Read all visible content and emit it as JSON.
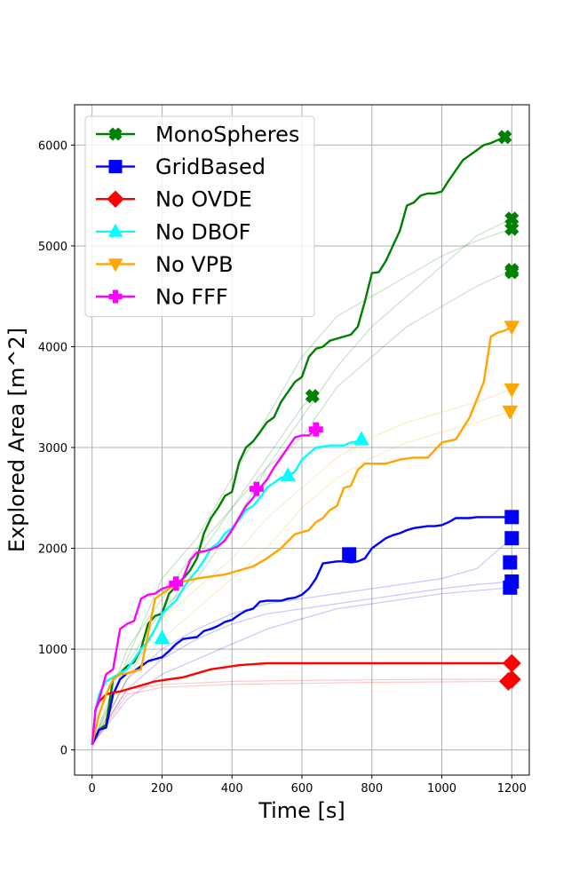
{
  "chart_data": {
    "type": "line",
    "xlabel": "Time [s]",
    "ylabel": "Explored Area [m^2]",
    "xlim": [
      -50,
      1250
    ],
    "ylim": [
      -250,
      6400
    ],
    "xticks": [
      0,
      200,
      400,
      600,
      800,
      1000,
      1200
    ],
    "yticks": [
      0,
      1000,
      2000,
      3000,
      4000,
      5000,
      6000
    ],
    "grid": true,
    "legend_position": "top-left",
    "series": [
      {
        "name": "MonoSpheres",
        "color": "#008000",
        "marker": "x-filled",
        "x": [
          0,
          20,
          40,
          60,
          80,
          100,
          120,
          140,
          160,
          180,
          200,
          220,
          240,
          260,
          280,
          300,
          320,
          340,
          360,
          380,
          400,
          420,
          440,
          460,
          480,
          500,
          520,
          540,
          560,
          580,
          600,
          620,
          640,
          660,
          680,
          700,
          720,
          740,
          760,
          780,
          800,
          820,
          840,
          860,
          880,
          900,
          920,
          940,
          960,
          980,
          1000,
          1020,
          1040,
          1060,
          1080,
          1100,
          1120,
          1140,
          1160,
          1180
        ],
        "values": [
          50,
          200,
          250,
          700,
          760,
          830,
          870,
          1000,
          1250,
          1330,
          1350,
          1550,
          1620,
          1700,
          1780,
          1900,
          2150,
          2300,
          2400,
          2520,
          2560,
          2850,
          3000,
          3060,
          3150,
          3250,
          3300,
          3450,
          3550,
          3650,
          3700,
          3900,
          3980,
          4000,
          4060,
          4080,
          4100,
          4120,
          4200,
          4450,
          4730,
          4740,
          4850,
          5000,
          5150,
          5400,
          5430,
          5500,
          5520,
          5520,
          5540,
          5650,
          5750,
          5850,
          5900,
          5950,
          6000,
          6020,
          6050,
          6080
        ],
        "end_marker": {
          "x": 1180,
          "y": 6080
        },
        "other_run_ends": [
          [
            1200,
            5270
          ],
          [
            1200,
            5170
          ],
          [
            1200,
            4760
          ],
          [
            1200,
            4740
          ],
          [
            630,
            3510
          ]
        ]
      },
      {
        "name": "GridBased",
        "color": "#0000ff",
        "marker": "square",
        "x": [
          0,
          20,
          40,
          60,
          80,
          100,
          120,
          140,
          160,
          180,
          200,
          220,
          240,
          260,
          280,
          300,
          320,
          340,
          360,
          380,
          400,
          420,
          440,
          460,
          480,
          500,
          520,
          540,
          560,
          580,
          600,
          620,
          640,
          660,
          680,
          700,
          720,
          740,
          760,
          780,
          800,
          820,
          840,
          860,
          880,
          900,
          920,
          940,
          960,
          980,
          1000,
          1020,
          1040,
          1060,
          1080,
          1100,
          1120,
          1140,
          1160,
          1180,
          1200
        ],
        "values": [
          50,
          200,
          220,
          550,
          700,
          760,
          780,
          830,
          880,
          900,
          920,
          980,
          1050,
          1100,
          1110,
          1120,
          1180,
          1200,
          1230,
          1270,
          1290,
          1340,
          1380,
          1400,
          1470,
          1480,
          1480,
          1480,
          1500,
          1510,
          1540,
          1600,
          1700,
          1850,
          1860,
          1870,
          1870,
          1860,
          1870,
          1900,
          2000,
          2050,
          2100,
          2130,
          2150,
          2180,
          2200,
          2210,
          2220,
          2220,
          2230,
          2260,
          2300,
          2300,
          2300,
          2310,
          2310,
          2310,
          2310,
          2310,
          2310
        ],
        "end_marker": {
          "x": 1200,
          "y": 2310
        },
        "other_run_ends": [
          [
            1200,
            2100
          ],
          [
            1195,
            1860
          ],
          [
            1200,
            1670
          ],
          [
            1195,
            1610
          ],
          [
            735,
            1940
          ]
        ]
      },
      {
        "name": "No OVDE",
        "color": "#ff0000",
        "marker": "diamond",
        "x": [
          0,
          10,
          20,
          40,
          60,
          80,
          100,
          140,
          180,
          220,
          260,
          300,
          340,
          380,
          420,
          460,
          500,
          600,
          700,
          800,
          900,
          1000,
          1100,
          1200
        ],
        "values": [
          50,
          400,
          480,
          550,
          570,
          580,
          600,
          640,
          680,
          700,
          720,
          760,
          800,
          820,
          840,
          850,
          860,
          860,
          860,
          860,
          860,
          860,
          860,
          860
        ],
        "end_marker": {
          "x": 1200,
          "y": 860
        },
        "other_run_ends": [
          [
            1200,
            700
          ],
          [
            1190,
            680
          ]
        ]
      },
      {
        "name": "No DBOF",
        "color": "#00ffff",
        "marker": "triangle-up",
        "x": [
          0,
          10,
          20,
          40,
          60,
          80,
          100,
          120,
          140,
          160,
          180,
          200,
          220,
          240,
          260,
          280,
          300,
          320,
          340,
          360,
          380,
          400,
          420,
          440,
          460,
          480,
          500,
          520,
          540,
          560,
          580,
          600,
          620,
          640,
          660,
          680,
          700,
          720,
          740,
          760,
          770
        ],
        "values": [
          50,
          400,
          550,
          680,
          720,
          760,
          800,
          900,
          1000,
          1080,
          1200,
          1350,
          1420,
          1480,
          1600,
          1700,
          1780,
          1880,
          2000,
          2050,
          2150,
          2200,
          2280,
          2380,
          2420,
          2500,
          2600,
          2650,
          2700,
          2720,
          2760,
          2880,
          2940,
          3000,
          3010,
          3020,
          3020,
          3020,
          3050,
          3060,
          3080
        ],
        "end_marker": {
          "x": 770,
          "y": 3080
        },
        "other_run_ends": [
          [
            560,
            2720
          ],
          [
            200,
            1110
          ]
        ]
      },
      {
        "name": "No VPB",
        "color": "#ffa500",
        "marker": "triangle-down",
        "x": [
          0,
          20,
          40,
          60,
          80,
          100,
          140,
          180,
          220,
          260,
          300,
          340,
          380,
          420,
          460,
          500,
          540,
          580,
          600,
          620,
          640,
          660,
          680,
          700,
          720,
          740,
          760,
          780,
          800,
          840,
          880,
          920,
          960,
          1000,
          1040,
          1080,
          1120,
          1140,
          1160,
          1180,
          1200
        ],
        "values": [
          50,
          350,
          550,
          700,
          750,
          760,
          800,
          1500,
          1600,
          1670,
          1700,
          1720,
          1740,
          1780,
          1820,
          1900,
          2000,
          2140,
          2160,
          2180,
          2260,
          2300,
          2380,
          2420,
          2600,
          2620,
          2780,
          2840,
          2840,
          2840,
          2880,
          2900,
          2900,
          3050,
          3080,
          3300,
          3650,
          4100,
          4140,
          4160,
          4200
        ],
        "end_marker": {
          "x": 1200,
          "y": 4200
        },
        "other_run_ends": [
          [
            1200,
            3580
          ],
          [
            1195,
            3360
          ]
        ]
      },
      {
        "name": "No FFF",
        "color": "#ff00ff",
        "marker": "plus-filled",
        "x": [
          0,
          10,
          20,
          40,
          60,
          80,
          100,
          120,
          140,
          160,
          180,
          200,
          220,
          240,
          260,
          280,
          300,
          320,
          340,
          360,
          380,
          400,
          420,
          440,
          460,
          480,
          500,
          520,
          540,
          560,
          580,
          600,
          620,
          640
        ],
        "values": [
          50,
          400,
          500,
          750,
          800,
          1200,
          1250,
          1280,
          1500,
          1540,
          1550,
          1600,
          1620,
          1640,
          1700,
          1880,
          1960,
          1970,
          1990,
          2020,
          2080,
          2180,
          2300,
          2420,
          2500,
          2600,
          2680,
          2800,
          2900,
          3000,
          3100,
          3120,
          3120,
          3180
        ],
        "end_marker": {
          "x": 640,
          "y": 3180
        },
        "other_run_ends": [
          [
            470,
            2590
          ],
          [
            240,
            1650
          ]
        ]
      }
    ],
    "faint_runs": [
      {
        "color": "#008000",
        "x": [
          0,
          100,
          200,
          300,
          400,
          500,
          600,
          700,
          800,
          900,
          1000,
          1100,
          1200
        ],
        "values": [
          50,
          900,
          1700,
          2100,
          2700,
          3300,
          3900,
          4300,
          4500,
          4700,
          4900,
          5050,
          5170
        ]
      },
      {
        "color": "#008000",
        "x": [
          0,
          100,
          200,
          300,
          400,
          500,
          600,
          700,
          800,
          900,
          1000,
          1100,
          1200
        ],
        "values": [
          50,
          1000,
          1500,
          2000,
          2400,
          2800,
          3300,
          3800,
          4200,
          4500,
          4800,
          5100,
          5270
        ]
      },
      {
        "color": "#008000",
        "x": [
          0,
          100,
          200,
          300,
          400,
          500,
          600,
          700,
          800,
          900,
          1000,
          1100,
          1200
        ],
        "values": [
          50,
          850,
          1400,
          1700,
          2200,
          2800,
          3100,
          3600,
          3900,
          4200,
          4400,
          4600,
          4760
        ]
      },
      {
        "color": "#008000",
        "x": [
          0,
          100,
          200,
          300,
          400,
          500,
          600,
          630
        ],
        "values": [
          50,
          700,
          1300,
          1900,
          2400,
          2900,
          3400,
          3510
        ]
      },
      {
        "color": "#0000ff",
        "x": [
          0,
          100,
          200,
          300,
          400,
          500,
          600,
          700,
          800,
          900,
          1000,
          1100,
          1200
        ],
        "values": [
          50,
          700,
          1000,
          1200,
          1350,
          1450,
          1500,
          1550,
          1600,
          1650,
          1700,
          1800,
          2100
        ]
      },
      {
        "color": "#0000ff",
        "x": [
          0,
          100,
          200,
          300,
          400,
          500,
          600,
          700,
          800,
          900,
          1000,
          1100,
          1200
        ],
        "values": [
          50,
          600,
          900,
          1100,
          1250,
          1350,
          1400,
          1450,
          1500,
          1550,
          1600,
          1640,
          1670
        ]
      },
      {
        "color": "#0000ff",
        "x": [
          0,
          100,
          200,
          300,
          400,
          500,
          600,
          700,
          800,
          900,
          1000,
          1100,
          1200
        ],
        "values": [
          50,
          500,
          750,
          900,
          1050,
          1200,
          1300,
          1400,
          1450,
          1500,
          1550,
          1580,
          1610
        ]
      },
      {
        "color": "#ff0000",
        "x": [
          0,
          100,
          200,
          400,
          600,
          800,
          1000,
          1200
        ],
        "values": [
          50,
          600,
          650,
          680,
          690,
          695,
          700,
          700
        ]
      },
      {
        "color": "#ff0000",
        "x": [
          0,
          100,
          200,
          400,
          600,
          800,
          1000,
          1200
        ],
        "values": [
          50,
          550,
          620,
          650,
          660,
          670,
          675,
          680
        ]
      },
      {
        "color": "#ffa500",
        "x": [
          0,
          100,
          200,
          300,
          400,
          500,
          600,
          700,
          800,
          900,
          1000,
          1100,
          1200
        ],
        "values": [
          50,
          800,
          1300,
          1600,
          1900,
          2300,
          2600,
          2900,
          3100,
          3250,
          3350,
          3450,
          3580
        ]
      },
      {
        "color": "#ffa500",
        "x": [
          0,
          100,
          200,
          300,
          400,
          500,
          600,
          700,
          800,
          900,
          1000,
          1100,
          1200
        ],
        "values": [
          50,
          700,
          1100,
          1400,
          1700,
          2000,
          2400,
          2700,
          2900,
          3050,
          3150,
          3250,
          3360
        ]
      }
    ]
  }
}
